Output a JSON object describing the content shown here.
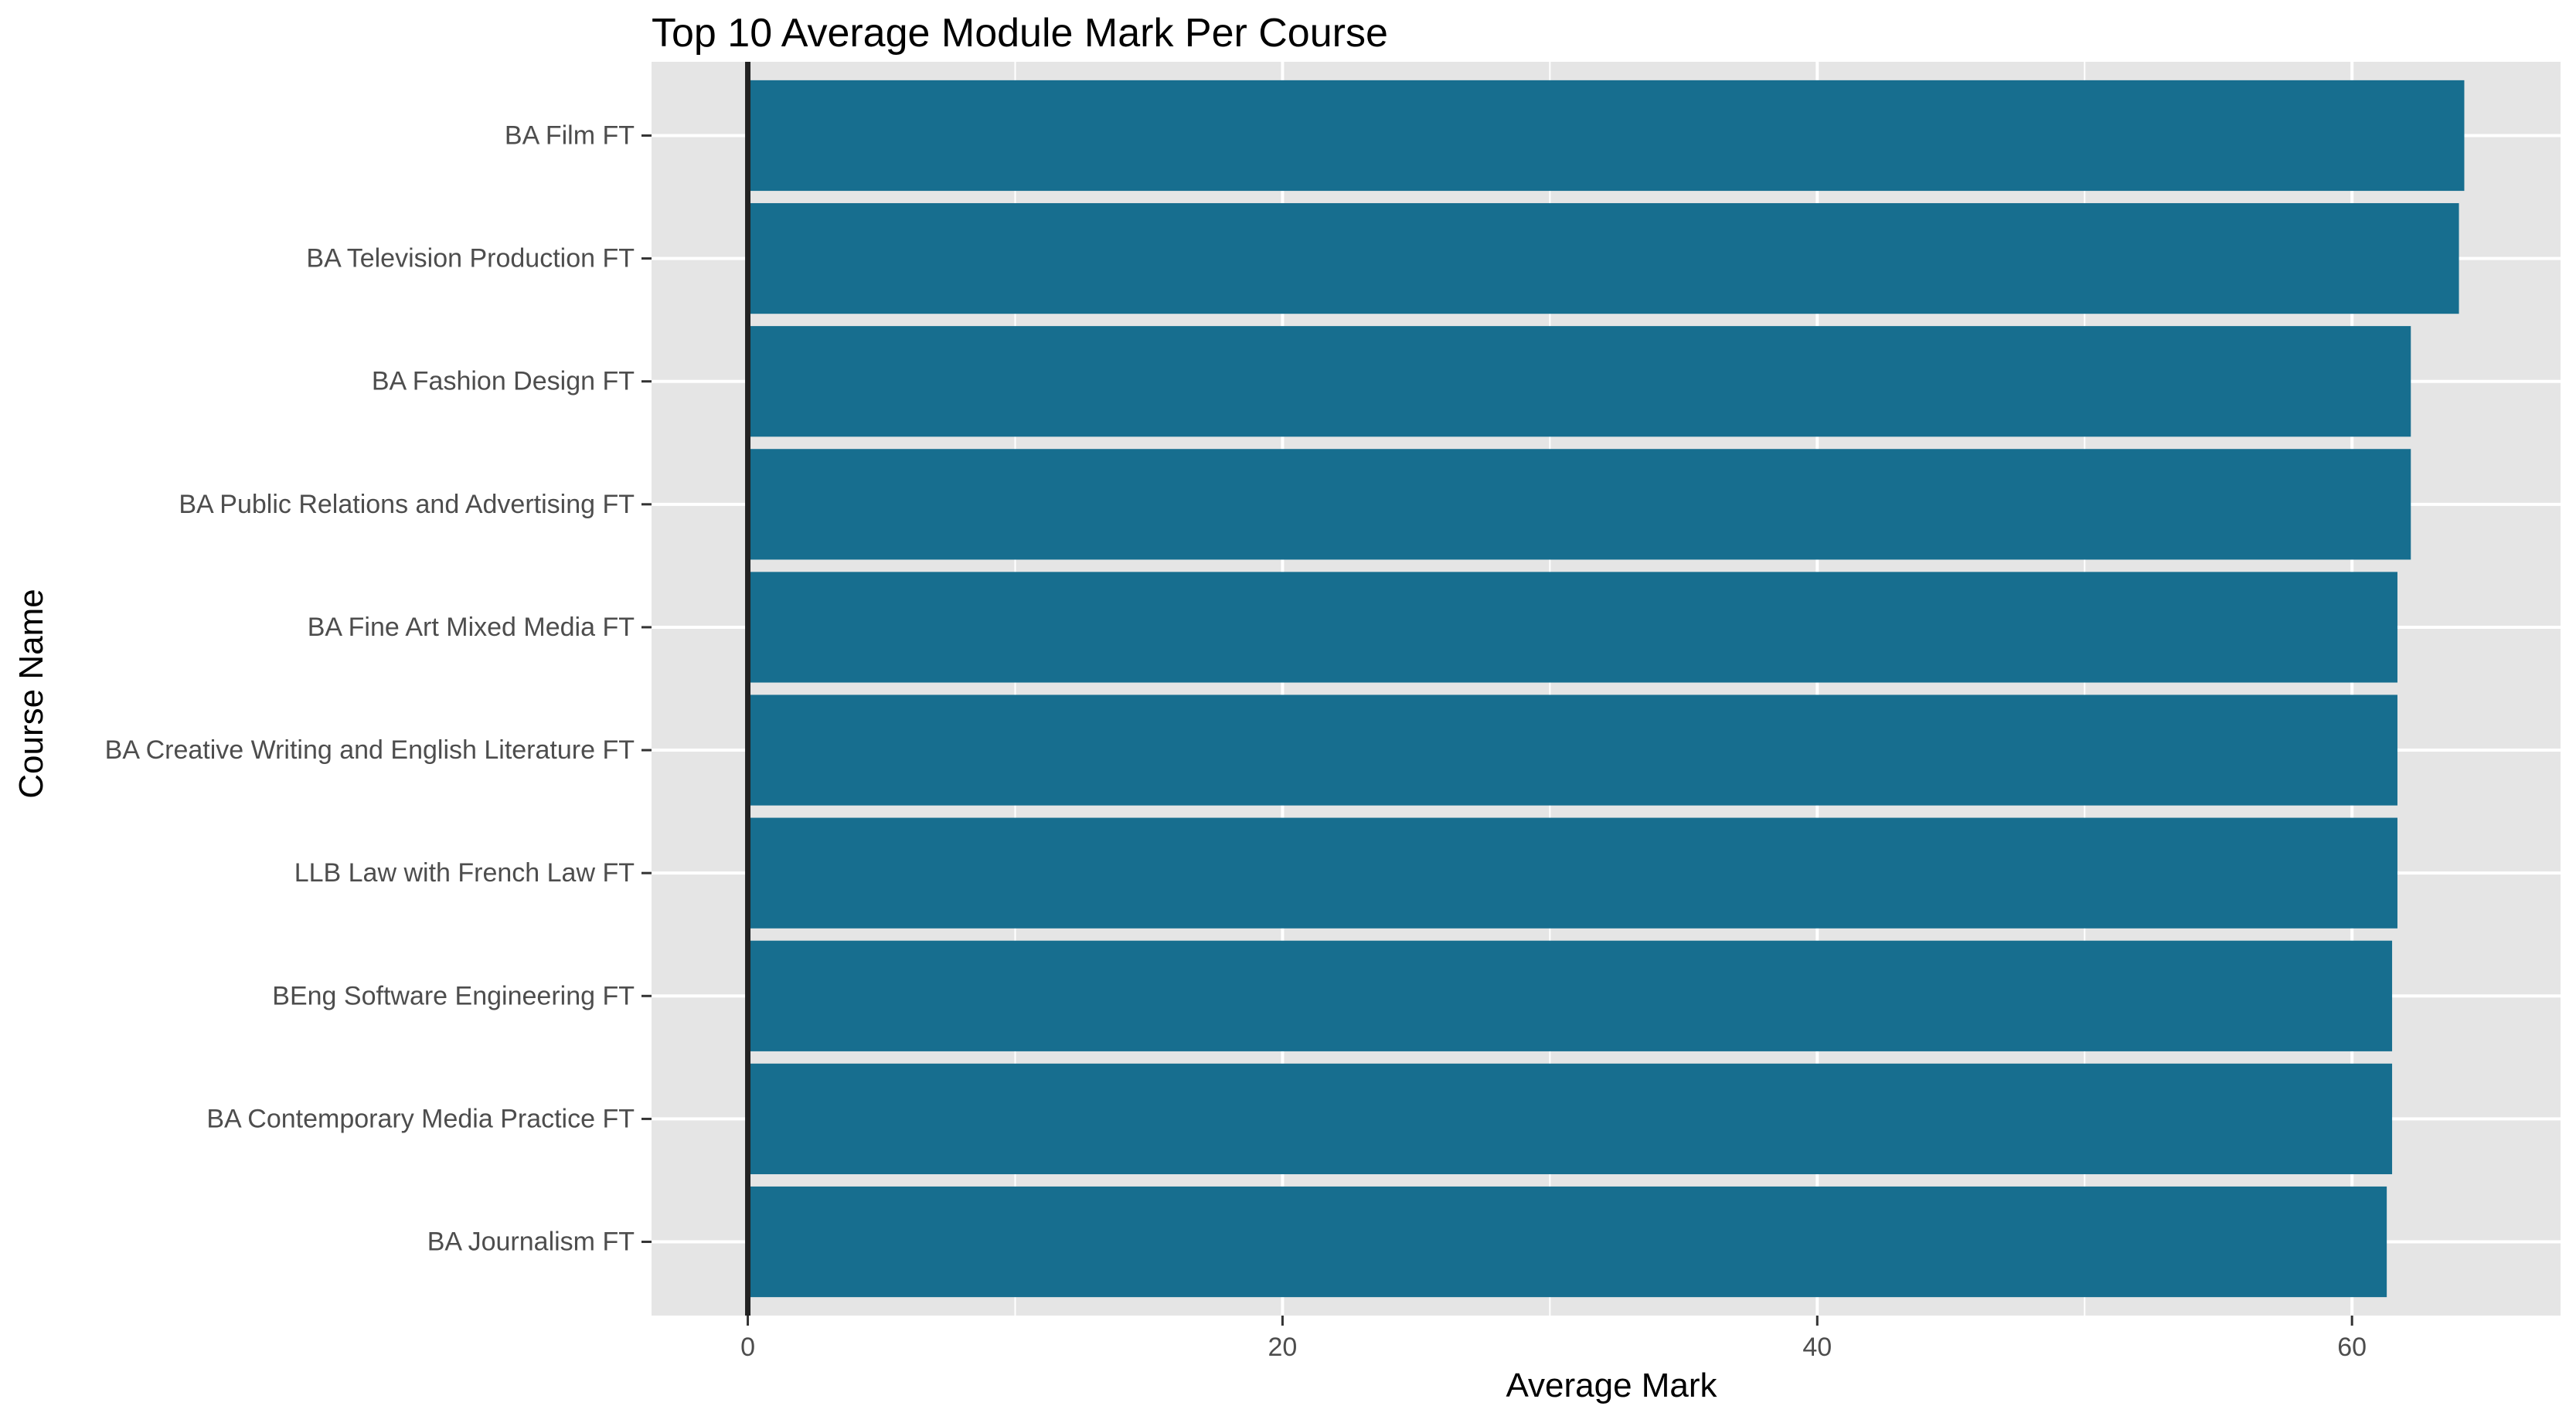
{
  "chart_data": {
    "type": "bar",
    "orientation": "horizontal",
    "title": "Top 10 Average Module Mark Per Course",
    "xlabel": "Average Mark",
    "ylabel": "Course Name",
    "xlim": [
      -3.6,
      67.8
    ],
    "x_ticks": [
      0,
      20,
      40,
      60
    ],
    "grid": true,
    "legend": "none",
    "bar_color": "#176E8F",
    "panel_background": "#E5E5E5",
    "grid_color": "#FFFFFF",
    "baseline_color": "#222222",
    "categories": [
      "BA Film FT",
      "BA Television Production FT",
      "BA Fashion Design FT",
      "BA Public Relations and Advertising FT",
      "BA Fine Art Mixed Media FT",
      "BA Creative Writing and English Literature FT",
      "LLB Law with French Law FT",
      "BEng Software Engineering FT",
      "BA Contemporary Media Practice FT",
      "BA Journalism FT"
    ],
    "values": [
      64.2,
      64.0,
      62.2,
      62.2,
      61.7,
      61.7,
      61.7,
      61.5,
      61.5,
      61.3
    ]
  }
}
